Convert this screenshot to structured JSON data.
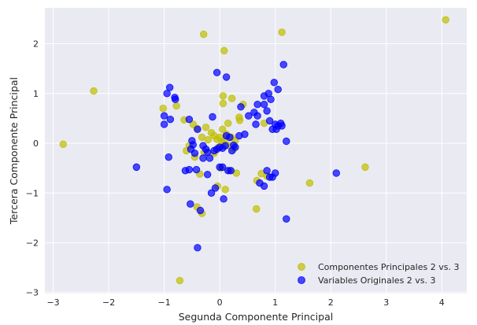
{
  "chart_data": {
    "type": "scatter",
    "xlabel": "Segunda Componente Principal",
    "ylabel": "Tercera Componente Principal",
    "xlim": [
      -3.15,
      4.45
    ],
    "ylim": [
      -3.02,
      2.72
    ],
    "xticks": [
      -3,
      -2,
      -1,
      0,
      1,
      2,
      3,
      4
    ],
    "yticks": [
      -3,
      -2,
      -1,
      0,
      1,
      2
    ],
    "grid": true,
    "legend_position": "lower-right",
    "background": "#eaeaf2",
    "series": [
      {
        "name": "Componentes Principales 2 vs. 3",
        "color": "#bfbf00",
        "points": [
          [
            -2.82,
            -0.02
          ],
          [
            -2.27,
            1.05
          ],
          [
            -0.72,
            -2.76
          ],
          [
            -0.29,
            2.19
          ],
          [
            0.08,
            1.86
          ],
          [
            1.12,
            2.23
          ],
          [
            4.07,
            2.48
          ],
          [
            -1.02,
            0.7
          ],
          [
            -0.78,
            0.75
          ],
          [
            -0.64,
            0.47
          ],
          [
            -0.48,
            0.38
          ],
          [
            -0.41,
            0.3
          ],
          [
            -0.32,
            0.12
          ],
          [
            -0.25,
            0.32
          ],
          [
            -0.21,
            0.07
          ],
          [
            -0.15,
            0.21
          ],
          [
            -0.1,
            0.15
          ],
          [
            -0.05,
            0.08
          ],
          [
            0.0,
            0.12
          ],
          [
            0.04,
            0.02
          ],
          [
            0.08,
            0.05
          ],
          [
            -0.02,
            -0.08
          ],
          [
            0.12,
            0.18
          ],
          [
            0.16,
            -0.04
          ],
          [
            0.21,
            0.12
          ],
          [
            0.25,
            -0.12
          ],
          [
            -0.28,
            -0.18
          ],
          [
            -0.55,
            -0.05
          ],
          [
            -0.45,
            -0.28
          ],
          [
            0.05,
            0.28
          ],
          [
            0.06,
            0.8
          ],
          [
            0.06,
            0.95
          ],
          [
            0.22,
            0.9
          ],
          [
            0.35,
            0.52
          ],
          [
            0.36,
            0.46
          ],
          [
            0.42,
            0.78
          ],
          [
            0.28,
            0.05
          ],
          [
            0.18,
            -0.55
          ],
          [
            0.3,
            -0.6
          ],
          [
            -0.36,
            -0.62
          ],
          [
            -0.04,
            -0.86
          ],
          [
            0.1,
            -0.93
          ],
          [
            -0.41,
            -1.28
          ],
          [
            -0.32,
            -1.41
          ],
          [
            0.67,
            -0.75
          ],
          [
            0.75,
            -0.61
          ],
          [
            0.85,
            -0.66
          ],
          [
            0.8,
            0.4
          ],
          [
            0.66,
            -1.32
          ],
          [
            1.62,
            -0.8
          ],
          [
            2.62,
            -0.48
          ],
          [
            -0.1,
            -0.2
          ],
          [
            0.02,
            -0.5
          ],
          [
            0.15,
            0.4
          ],
          [
            -0.6,
            -0.15
          ]
        ]
      },
      {
        "name": "Variables Originales 2 vs. 3",
        "color": "#0000ff",
        "points": [
          [
            -1.5,
            -0.48
          ],
          [
            -1.0,
            0.55
          ],
          [
            -0.95,
            1.0
          ],
          [
            -0.9,
            1.12
          ],
          [
            -0.8,
            0.88
          ],
          [
            -0.81,
            0.92
          ],
          [
            -0.89,
            0.48
          ],
          [
            -1.0,
            0.38
          ],
          [
            -0.92,
            -0.28
          ],
          [
            -0.95,
            -0.93
          ],
          [
            -0.55,
            0.48
          ],
          [
            -0.5,
            0.05
          ],
          [
            -0.48,
            -0.03
          ],
          [
            -0.52,
            -0.12
          ],
          [
            -0.45,
            -0.2
          ],
          [
            -0.42,
            -0.53
          ],
          [
            -0.55,
            -0.53
          ],
          [
            -0.62,
            -0.55
          ],
          [
            -0.53,
            -1.22
          ],
          [
            -0.35,
            -1.35
          ],
          [
            -0.4,
            -2.1
          ],
          [
            -0.4,
            0.28
          ],
          [
            -0.3,
            -0.05
          ],
          [
            -0.25,
            -0.12
          ],
          [
            -0.22,
            -0.18
          ],
          [
            -0.18,
            -0.3
          ],
          [
            -0.3,
            -0.3
          ],
          [
            -0.22,
            -0.63
          ],
          [
            -0.1,
            -0.15
          ],
          [
            -0.05,
            -0.12
          ],
          [
            0.0,
            -0.08
          ],
          [
            0.05,
            -0.1
          ],
          [
            0.1,
            -0.05
          ],
          [
            0.12,
            0.15
          ],
          [
            0.18,
            0.12
          ],
          [
            0.22,
            -0.15
          ],
          [
            0.25,
            -0.04
          ],
          [
            0.28,
            -0.08
          ],
          [
            0.2,
            -0.55
          ],
          [
            0.15,
            -0.55
          ],
          [
            0.0,
            -0.48
          ],
          [
            0.05,
            -0.48
          ],
          [
            -0.08,
            -0.9
          ],
          [
            0.07,
            -1.12
          ],
          [
            -0.15,
            -1.0
          ],
          [
            -0.05,
            1.42
          ],
          [
            0.12,
            1.33
          ],
          [
            -0.13,
            0.53
          ],
          [
            0.35,
            0.15
          ],
          [
            0.52,
            0.55
          ],
          [
            0.62,
            0.62
          ],
          [
            0.68,
            0.78
          ],
          [
            0.68,
            0.55
          ],
          [
            0.8,
            0.78
          ],
          [
            0.85,
            0.65
          ],
          [
            0.8,
            0.95
          ],
          [
            0.92,
            0.88
          ],
          [
            0.88,
            1.0
          ],
          [
            0.9,
            0.45
          ],
          [
            0.95,
            0.28
          ],
          [
            1.0,
            0.38
          ],
          [
            1.02,
            0.28
          ],
          [
            1.05,
            0.35
          ],
          [
            1.1,
            0.4
          ],
          [
            1.12,
            0.35
          ],
          [
            0.98,
            1.22
          ],
          [
            1.05,
            1.08
          ],
          [
            1.15,
            1.58
          ],
          [
            1.2,
            0.04
          ],
          [
            0.65,
            0.38
          ],
          [
            0.72,
            -0.8
          ],
          [
            0.85,
            -0.55
          ],
          [
            0.8,
            -0.86
          ],
          [
            0.9,
            -0.68
          ],
          [
            0.95,
            -0.68
          ],
          [
            1.0,
            -0.6
          ],
          [
            1.2,
            -1.52
          ],
          [
            2.1,
            -0.6
          ],
          [
            0.38,
            0.73
          ],
          [
            0.45,
            0.18
          ]
        ]
      }
    ]
  }
}
